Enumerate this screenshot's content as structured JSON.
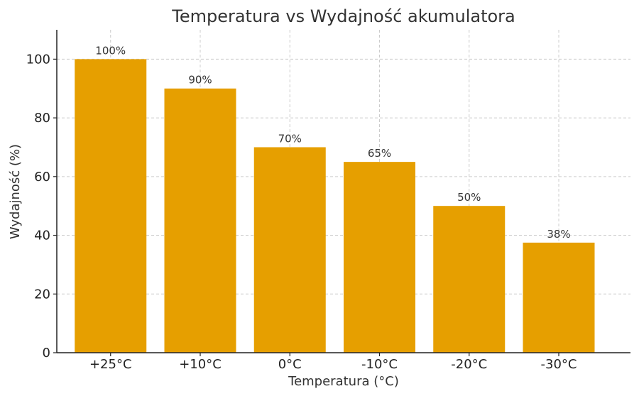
{
  "chart_data": {
    "type": "bar",
    "title": "Temperatura vs Wydajność akumulatora",
    "xlabel": "Temperatura (°C)",
    "ylabel": "Wydajność (%)",
    "categories": [
      "+25°C",
      "+10°C",
      "0°C",
      "-10°C",
      "-20°C",
      "-30°C"
    ],
    "values": [
      100,
      90,
      70,
      65,
      50,
      37.5
    ],
    "data_labels": [
      "100%",
      "90%",
      "70%",
      "65%",
      "50%",
      "38%"
    ],
    "ylim": [
      0,
      110
    ],
    "yticks": [
      0,
      20,
      40,
      60,
      80,
      100
    ],
    "grid": true,
    "bar_color": "#E69F00"
  }
}
